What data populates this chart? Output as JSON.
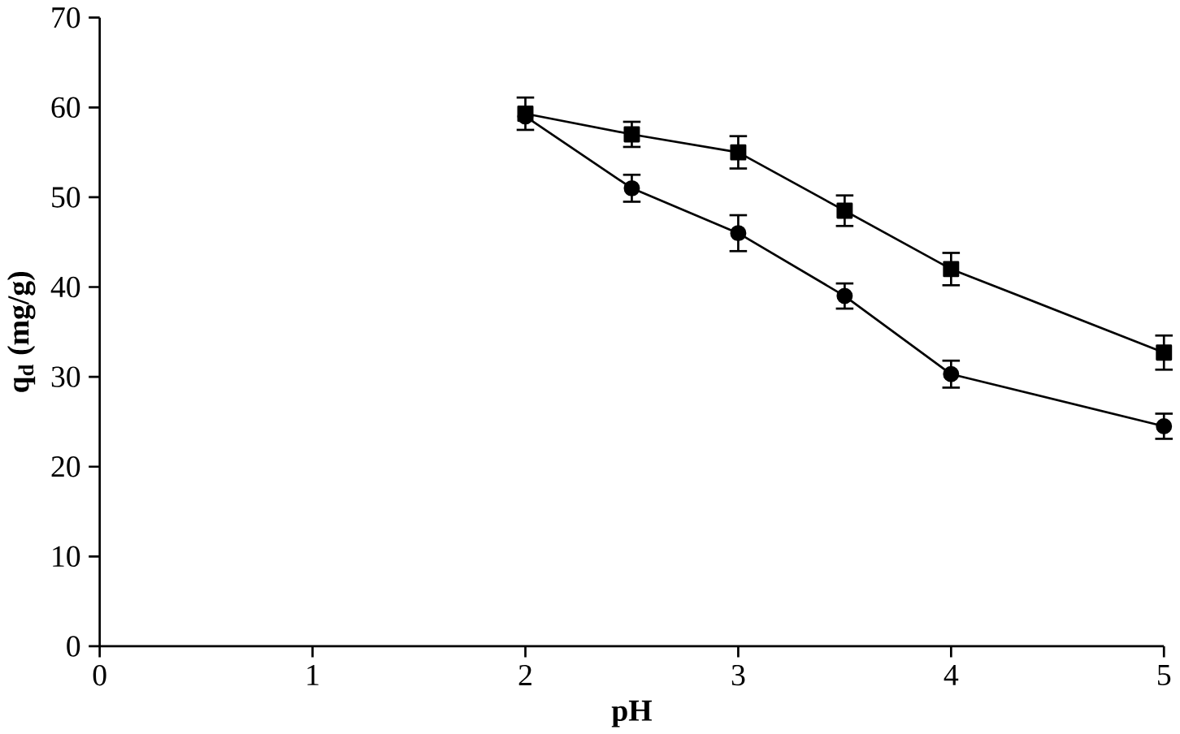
{
  "chart_data": {
    "type": "line",
    "xlabel": "pH",
    "ylabel": "q$_{d}$ (mg/g)",
    "xlim": [
      0,
      5
    ],
    "xticks": [
      0,
      1,
      2,
      3,
      4,
      5
    ],
    "ylim": [
      0,
      70
    ],
    "yticks": [
      0,
      10,
      20,
      30,
      40,
      50,
      60,
      70
    ],
    "grid": false,
    "series": [
      {
        "color": "#000000",
        "marker": "square",
        "x": [
          2,
          2.5,
          3,
          3.5,
          4,
          5
        ],
        "values": [
          59.3,
          57,
          55,
          48.5,
          42,
          32.7
        ],
        "errors": [
          1.8,
          1.4,
          1.8,
          1.7,
          1.8,
          1.9
        ]
      },
      {
        "color": "#000000",
        "marker": "circle",
        "x": [
          2,
          2.5,
          3,
          3.5,
          4,
          5
        ],
        "values": [
          59,
          51,
          46,
          39,
          30.3,
          24.5
        ],
        "errors": [
          null,
          1.5,
          2,
          1.4,
          1.5,
          1.4
        ]
      }
    ]
  }
}
